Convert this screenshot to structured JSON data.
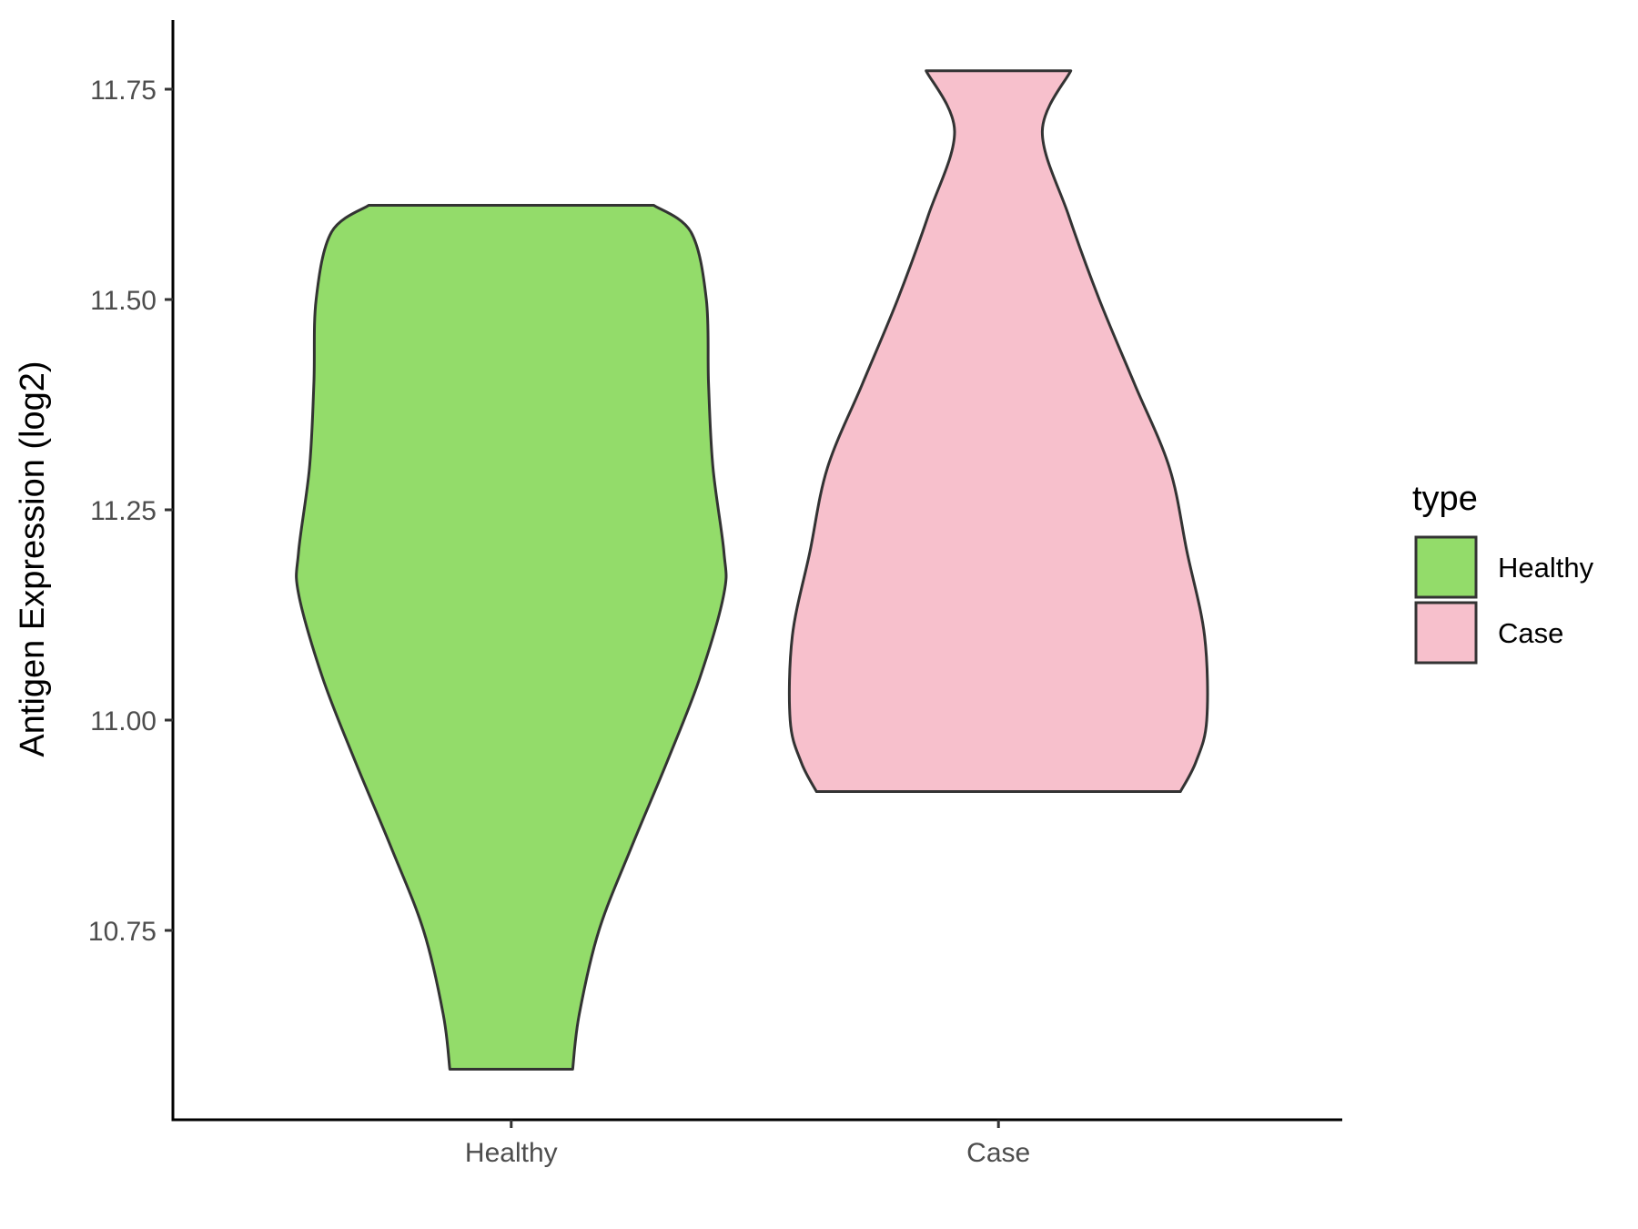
{
  "chart_data": {
    "type": "violin",
    "title": "",
    "xlabel": "",
    "ylabel": "Antigen Expression (log2)",
    "categories": [
      "Healthy",
      "Case"
    ],
    "ylim": [
      10.55,
      11.83
    ],
    "yticks": [
      "10.75",
      "11.00",
      "11.25",
      "11.50",
      "11.75"
    ],
    "grid": false,
    "legend": {
      "title": "type",
      "position": "right",
      "entries": [
        {
          "label": "Healthy",
          "color": "#93DC6A"
        },
        {
          "label": "Case",
          "color": "#F7C0CC"
        }
      ]
    },
    "series": [
      {
        "category": "Healthy",
        "color": "#93DC6A",
        "min": 10.585,
        "max": 11.612,
        "density_profile": [
          [
            10.585,
            0.28
          ],
          [
            10.65,
            0.31
          ],
          [
            10.75,
            0.4
          ],
          [
            10.85,
            0.55
          ],
          [
            10.95,
            0.71
          ],
          [
            11.05,
            0.86
          ],
          [
            11.15,
            0.97
          ],
          [
            11.2,
            0.97
          ],
          [
            11.3,
            0.92
          ],
          [
            11.4,
            0.9
          ],
          [
            11.5,
            0.89
          ],
          [
            11.58,
            0.82
          ],
          [
            11.612,
            0.65
          ]
        ]
      },
      {
        "category": "Case",
        "color": "#F7C0CC",
        "min": 10.915,
        "max": 11.772,
        "density_profile": [
          [
            10.915,
            0.83
          ],
          [
            10.95,
            0.9
          ],
          [
            11.0,
            0.95
          ],
          [
            11.1,
            0.94
          ],
          [
            11.2,
            0.86
          ],
          [
            11.3,
            0.78
          ],
          [
            11.4,
            0.62
          ],
          [
            11.5,
            0.46
          ],
          [
            11.6,
            0.32
          ],
          [
            11.7,
            0.2
          ],
          [
            11.772,
            0.33
          ]
        ]
      }
    ]
  }
}
